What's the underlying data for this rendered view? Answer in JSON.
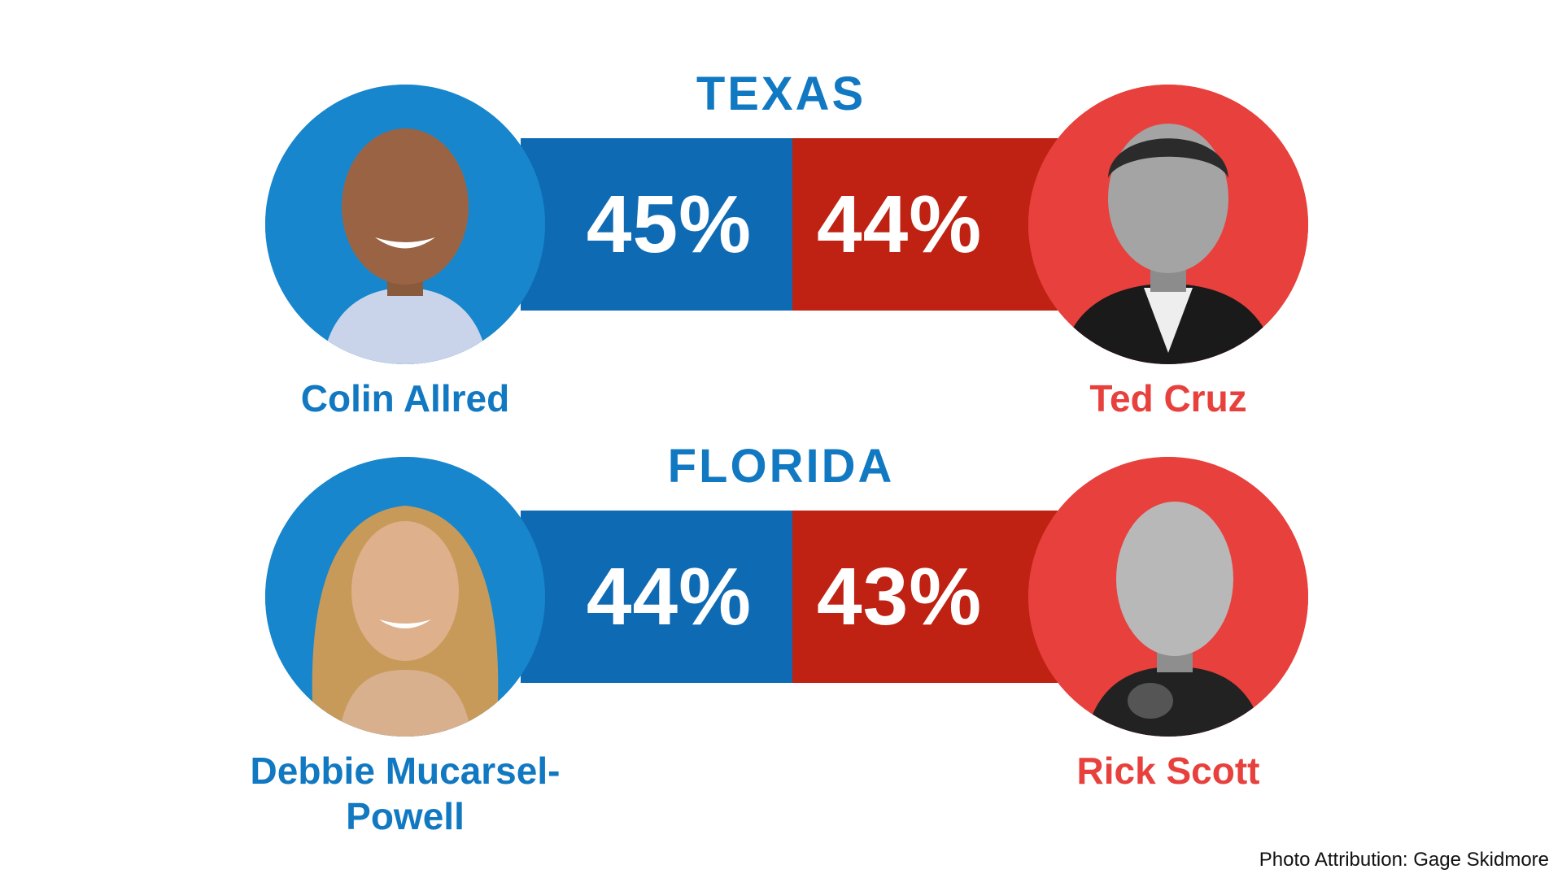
{
  "colors": {
    "dem_bar": "#0f6ab4",
    "rep_bar": "#bf2112",
    "dem_circle": "#1786cc",
    "rep_circle": "#e8403c",
    "dem_text": "#1178c2",
    "rep_text": "#e8403c"
  },
  "races": [
    {
      "state": "TEXAS",
      "dem": {
        "name": "Colin Allred",
        "percent": "45%",
        "value": 45,
        "photo_icon": "candidate-photo"
      },
      "rep": {
        "name": "Ted Cruz",
        "percent": "44%",
        "value": 44,
        "photo_icon": "candidate-photo"
      }
    },
    {
      "state": "FLORIDA",
      "dem": {
        "name": "Debbie Mucarsel-Powell",
        "percent": "44%",
        "value": 44,
        "photo_icon": "candidate-photo"
      },
      "rep": {
        "name": "Rick Scott",
        "percent": "43%",
        "value": 43,
        "photo_icon": "candidate-photo"
      }
    }
  ],
  "chart_data": [
    {
      "type": "bar",
      "title": "TEXAS",
      "categories": [
        "Colin Allred",
        "Ted Cruz"
      ],
      "values": [
        45,
        44
      ]
    },
    {
      "type": "bar",
      "title": "FLORIDA",
      "categories": [
        "Debbie Mucarsel-Powell",
        "Rick Scott"
      ],
      "values": [
        44,
        43
      ]
    }
  ],
  "attribution": "Photo Attribution: Gage Skidmore"
}
